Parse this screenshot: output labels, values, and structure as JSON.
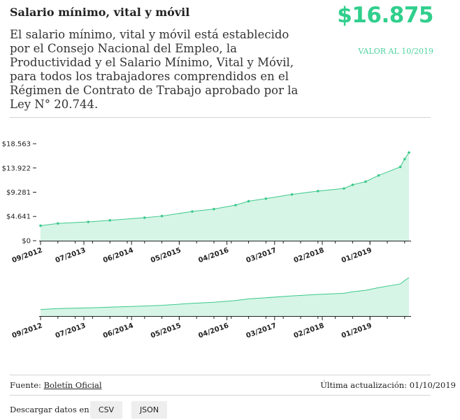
{
  "header": {
    "title": "Salario mínimo, vital y móvil",
    "description": "El salario mínimo, vital y móvil está establecido por el Consejo Nacional del Empleo, la Productividad y el Salario Mínimo, Vital y Móvil, para todos los trabajadores comprendidos en el Régimen de Contrato de Trabajo aprobado por la Ley N° 20.744.",
    "value": "$16.875",
    "value_date": "VALOR AL 10/2019"
  },
  "colors": {
    "accent": "#2fcf8c",
    "fill": "#d6f5e6",
    "line": "#3cc98b"
  },
  "chart_data": [
    {
      "type": "area",
      "y_ticks": [
        {
          "value": 0,
          "label": "$0"
        },
        {
          "value": 4641,
          "label": "$4.641"
        },
        {
          "value": 9281,
          "label": "$9.281"
        },
        {
          "value": 13922,
          "label": "$13.922"
        },
        {
          "value": 18563,
          "label": "$18.563"
        }
      ],
      "ylim": [
        0,
        18563
      ],
      "x_tick_labels": [
        "09/2012",
        "07/2013",
        "06/2014",
        "05/2015",
        "04/2016",
        "03/2017",
        "02/2018",
        "01/2019"
      ],
      "points": [
        {
          "x": "2012-09",
          "y": 2875
        },
        {
          "x": "2013-01",
          "y": 3300
        },
        {
          "x": "2013-08",
          "y": 3600
        },
        {
          "x": "2014-01",
          "y": 3900
        },
        {
          "x": "2014-09",
          "y": 4400
        },
        {
          "x": "2015-01",
          "y": 4716
        },
        {
          "x": "2015-08",
          "y": 5588
        },
        {
          "x": "2016-01",
          "y": 6060
        },
        {
          "x": "2016-06",
          "y": 6810
        },
        {
          "x": "2016-09",
          "y": 7560
        },
        {
          "x": "2017-01",
          "y": 8060
        },
        {
          "x": "2017-07",
          "y": 8860
        },
        {
          "x": "2018-01",
          "y": 9500
        },
        {
          "x": "2018-07",
          "y": 10000
        },
        {
          "x": "2018-09",
          "y": 10700
        },
        {
          "x": "2018-12",
          "y": 11300
        },
        {
          "x": "2019-03",
          "y": 12500
        },
        {
          "x": "2019-08",
          "y": 14125
        },
        {
          "x": "2019-09",
          "y": 15625
        },
        {
          "x": "2019-10",
          "y": 16875
        }
      ]
    },
    {
      "type": "area",
      "role": "overview",
      "x_tick_labels": [
        "09/2012",
        "07/2013",
        "06/2014",
        "05/2015",
        "04/2016",
        "03/2017",
        "02/2018",
        "01/2019"
      ]
    }
  ],
  "footer": {
    "source_label": "Fuente:",
    "source_link": "Boletín Oficial",
    "updated": "Última actualización: 01/10/2019",
    "download_label": "Descargar datos en:",
    "csv_label": "CSV",
    "json_label": "JSON"
  }
}
